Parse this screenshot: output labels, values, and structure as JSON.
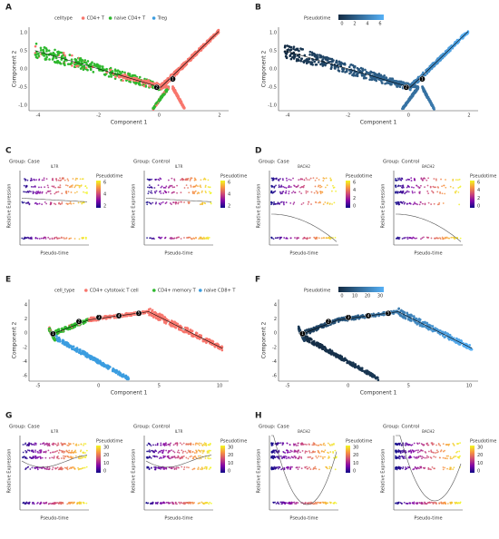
{
  "panels": [
    {
      "letter": "A",
      "kind": "trajectory",
      "legend_title": "celltype",
      "legend_items": [
        {
          "label": "CD4+ T",
          "color": "#f8766d"
        },
        {
          "label": "naive CD4+ T",
          "color": "#2eb82e"
        },
        {
          "label": "Treg",
          "color": "#3b9de0"
        }
      ],
      "x_label": "Component 1",
      "y_label": "Component 2",
      "x_ticks": [
        "-4",
        "-2",
        "0",
        "2"
      ],
      "y_ticks": [
        "1.0",
        "0.5",
        "0.0",
        "-0.5",
        "-1.0"
      ],
      "nodes": [
        "2",
        "1"
      ]
    },
    {
      "letter": "B",
      "kind": "trajectory",
      "legend_title": "Pseudotime",
      "colorbar_ticks": [
        "0",
        "2",
        "4",
        "6"
      ],
      "x_label": "Component 1",
      "y_label": "Component 2",
      "x_ticks": [
        "-4",
        "-2",
        "0",
        "2"
      ],
      "y_ticks": [
        "1.0",
        "0.5",
        "0.0",
        "-0.5",
        "-1.0"
      ],
      "nodes": [
        "2",
        "1"
      ]
    },
    {
      "letter": "C",
      "kind": "expression",
      "x_label": "Pseudo-time",
      "y_label": "Relative Expression",
      "legend_title": "Pseudotime",
      "legend_ticks": [
        "2",
        "4",
        "6"
      ],
      "subplots": [
        {
          "group": "Group: Case",
          "gene": "IL7R"
        },
        {
          "group": "Group: Control",
          "gene": "IL7R"
        }
      ]
    },
    {
      "letter": "D",
      "kind": "expression",
      "x_label": "Pseudo-time",
      "y_label": "Relative Expression",
      "legend_title": "Pseudotime",
      "legend_ticks": [
        "0",
        "2",
        "4",
        "6"
      ],
      "subplots": [
        {
          "group": "Group: Case",
          "gene": "BACH2"
        },
        {
          "group": "Group: Control",
          "gene": "BACH2"
        }
      ]
    },
    {
      "letter": "E",
      "kind": "trajectory",
      "legend_title": "cell_type",
      "legend_items": [
        {
          "label": "CD4+ cytotoxic T cell",
          "color": "#f8766d"
        },
        {
          "label": "CD4+ memory T",
          "color": "#2eb82e"
        },
        {
          "label": "naive CD8+ T",
          "color": "#3b9de0"
        }
      ],
      "x_label": "Component 1",
      "y_label": "Component 2",
      "x_ticks": [
        "-5",
        "0",
        "5",
        "10"
      ],
      "y_ticks": [
        "4",
        "2",
        "0",
        "-2",
        "-4",
        "-6"
      ],
      "nodes": [
        "1",
        "2",
        "3",
        "4",
        "5"
      ]
    },
    {
      "letter": "F",
      "kind": "trajectory",
      "legend_title": "Pseudotime",
      "colorbar_ticks": [
        "0",
        "10",
        "20",
        "30"
      ],
      "x_label": "Component 1",
      "y_label": "Component 2",
      "x_ticks": [
        "-5",
        "0",
        "5",
        "10"
      ],
      "y_ticks": [
        "4",
        "2",
        "0",
        "-2",
        "-4",
        "-6"
      ],
      "nodes": [
        "1",
        "2",
        "3",
        "4",
        "5"
      ]
    },
    {
      "letter": "G",
      "kind": "expression",
      "x_label": "Pseudo-time",
      "y_label": "Relative Expression",
      "legend_title": "Pseudotime",
      "legend_ticks": [
        "0",
        "10",
        "20",
        "30"
      ],
      "subplots": [
        {
          "group": "Group: Case",
          "gene": "IL7R"
        },
        {
          "group": "Group: Control",
          "gene": "IL7R"
        }
      ]
    },
    {
      "letter": "H",
      "kind": "expression",
      "x_label": "Pseudo-time",
      "y_label": "Relative Expression",
      "legend_title": "Pseudotime",
      "legend_ticks": [
        "0",
        "10",
        "20",
        "30"
      ],
      "subplots": [
        {
          "group": "Group: Case",
          "gene": "BACH2"
        },
        {
          "group": "Group: Control",
          "gene": "BACH2"
        }
      ]
    }
  ]
}
